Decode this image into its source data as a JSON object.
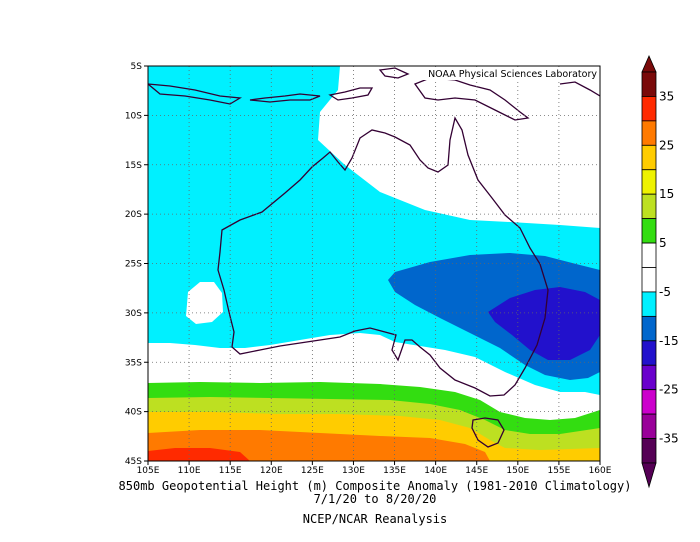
{
  "credit": "NOAA Physical Sciences Laboratory",
  "caption": {
    "line1": "850mb Geopotential Height (m) Composite Anomaly (1981-2010 Climatology)",
    "line2": "7/1/20 to 8/20/20",
    "line3": "NCEP/NCAR Reanalysis"
  },
  "map": {
    "lon_range": [
      105,
      160
    ],
    "lat_range": [
      -45,
      -5
    ],
    "lon_ticks": [
      "105E",
      "110E",
      "115E",
      "120E",
      "125E",
      "130E",
      "135E",
      "140E",
      "145E",
      "150E",
      "155E",
      "160E"
    ],
    "lat_ticks": [
      "5S",
      "10S",
      "15S",
      "20S",
      "25S",
      "30S",
      "35S",
      "40S",
      "45S"
    ]
  },
  "colorbar": {
    "labels": [
      "35",
      "25",
      "15",
      "5",
      "-5",
      "-15",
      "-25",
      "-35"
    ],
    "colors": [
      "#7a0a0a",
      "#ff2a00",
      "#ff7a00",
      "#ffcc00",
      "#eef200",
      "#bde021",
      "#33dd11",
      "#ffffff",
      "#ffffff",
      "#00f0ff",
      "#0066cc",
      "#2211cc",
      "#6a00cc",
      "#cc00cc",
      "#990099",
      "#550055"
    ]
  }
}
